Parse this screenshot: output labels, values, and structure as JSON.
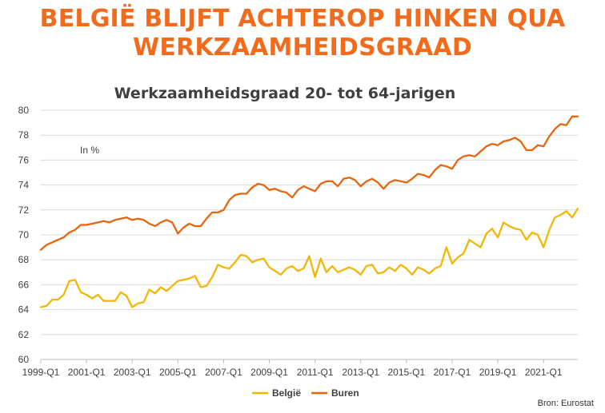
{
  "slide": {
    "headline_line1": "BELGIË BLIJFT ACHTEROP HINKEN QUA",
    "headline_line2": "WERKZAAMHEIDSGRAAD",
    "source": "Bron: Eurostat"
  },
  "chart_data": {
    "type": "line",
    "title": "Werkzaamheidsgraad 20- tot 64-jarigen",
    "annotation": "In %",
    "xlabel": "",
    "ylabel": "",
    "ylim": [
      60,
      80
    ],
    "yticks": [
      60,
      62,
      64,
      66,
      68,
      70,
      72,
      74,
      76,
      78,
      80
    ],
    "x_start": "1999-Q1",
    "x_tick_labels": [
      "1999-Q1",
      "2001-Q1",
      "2003-Q1",
      "2005-Q1",
      "2007-Q1",
      "2009-Q1",
      "2011-Q1",
      "2013-Q1",
      "2015-Q1",
      "2017-Q1",
      "2019-Q1",
      "2021-Q1"
    ],
    "grid": true,
    "legend": "bottom",
    "colors": {
      "belgie": "#f2b705",
      "buren": "#e8650c",
      "grid": "#d9d9d9",
      "title": "#404040",
      "axis_text": "#404040"
    },
    "series": [
      {
        "name": "België",
        "color": "#f2b705",
        "values": [
          64.2,
          64.3,
          64.8,
          64.8,
          65.2,
          66.3,
          66.4,
          65.4,
          65.2,
          64.9,
          65.2,
          64.7,
          64.7,
          64.7,
          65.4,
          65.1,
          64.2,
          64.5,
          64.6,
          65.6,
          65.3,
          65.8,
          65.5,
          65.9,
          66.3,
          66.4,
          66.5,
          66.7,
          65.8,
          65.9,
          66.6,
          67.6,
          67.4,
          67.3,
          67.8,
          68.4,
          68.3,
          67.8,
          68.0,
          68.1,
          67.4,
          67.1,
          66.8,
          67.3,
          67.5,
          67.1,
          67.3,
          68.3,
          66.6,
          68.1,
          67.0,
          67.5,
          67.0,
          67.2,
          67.4,
          67.2,
          66.8,
          67.5,
          67.6,
          66.9,
          67.0,
          67.4,
          67.1,
          67.6,
          67.3,
          66.8,
          67.4,
          67.2,
          66.9,
          67.3,
          67.5,
          69.0,
          67.7,
          68.2,
          68.5,
          69.6,
          69.3,
          69.0,
          70.1,
          70.5,
          69.8,
          71.0,
          70.7,
          70.5,
          70.4,
          69.6,
          70.2,
          70.0,
          69.0,
          70.4,
          71.4,
          71.6,
          71.9,
          71.4,
          72.1
        ]
      },
      {
        "name": "Buren",
        "color": "#e8650c",
        "values": [
          68.8,
          69.2,
          69.4,
          69.6,
          69.8,
          70.2,
          70.4,
          70.8,
          70.8,
          70.9,
          71.0,
          71.1,
          71.0,
          71.2,
          71.3,
          71.4,
          71.2,
          71.3,
          71.2,
          70.9,
          70.7,
          71.0,
          71.2,
          71.0,
          70.1,
          70.6,
          70.9,
          70.7,
          70.7,
          71.3,
          71.8,
          71.8,
          72.0,
          72.8,
          73.2,
          73.3,
          73.3,
          73.8,
          74.1,
          74.0,
          73.6,
          73.7,
          73.5,
          73.4,
          73.0,
          73.6,
          73.9,
          73.7,
          73.5,
          74.1,
          74.3,
          74.3,
          73.9,
          74.5,
          74.6,
          74.4,
          73.9,
          74.3,
          74.5,
          74.2,
          73.7,
          74.2,
          74.4,
          74.3,
          74.2,
          74.5,
          74.9,
          74.8,
          74.6,
          75.2,
          75.6,
          75.5,
          75.3,
          76.0,
          76.3,
          76.4,
          76.3,
          76.7,
          77.1,
          77.3,
          77.2,
          77.5,
          77.6,
          77.8,
          77.5,
          76.8,
          76.8,
          77.2,
          77.1,
          77.9,
          78.5,
          78.9,
          78.8,
          79.5,
          79.5
        ]
      }
    ]
  }
}
